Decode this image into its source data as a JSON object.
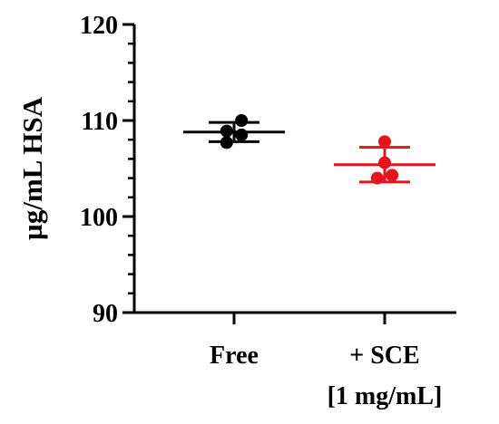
{
  "chart_data": {
    "type": "scatter",
    "ylabel": "µg/mL HSA",
    "ylim": [
      90,
      120
    ],
    "yticks": [
      90,
      100,
      110,
      120
    ],
    "y_minor_ticks": [
      92,
      94,
      96,
      98,
      102,
      104,
      106,
      108,
      112,
      114,
      116,
      118
    ],
    "grid": false,
    "categories": [
      {
        "label_lines": [
          "Free"
        ],
        "color": "#000000"
      },
      {
        "label_lines": [
          "+ SCE",
          "[1 mg/mL]"
        ],
        "color": "#e8141b"
      }
    ],
    "series": [
      {
        "category": 0,
        "color": "#000000",
        "points": [
          {
            "x_offset": -0.07,
            "y": 108.9
          },
          {
            "x_offset": 0.07,
            "y": 110.0
          },
          {
            "x_offset": -0.07,
            "y": 107.7
          },
          {
            "x_offset": 0.07,
            "y": 108.5
          }
        ],
        "mean": 108.8,
        "sd": 1.0
      },
      {
        "category": 1,
        "color": "#e8141b",
        "points": [
          {
            "x_offset": 0.0,
            "y": 107.8
          },
          {
            "x_offset": 0.0,
            "y": 105.6
          },
          {
            "x_offset": -0.07,
            "y": 104.0
          },
          {
            "x_offset": 0.07,
            "y": 104.3
          }
        ],
        "mean": 105.4,
        "sd": 1.8
      }
    ]
  }
}
